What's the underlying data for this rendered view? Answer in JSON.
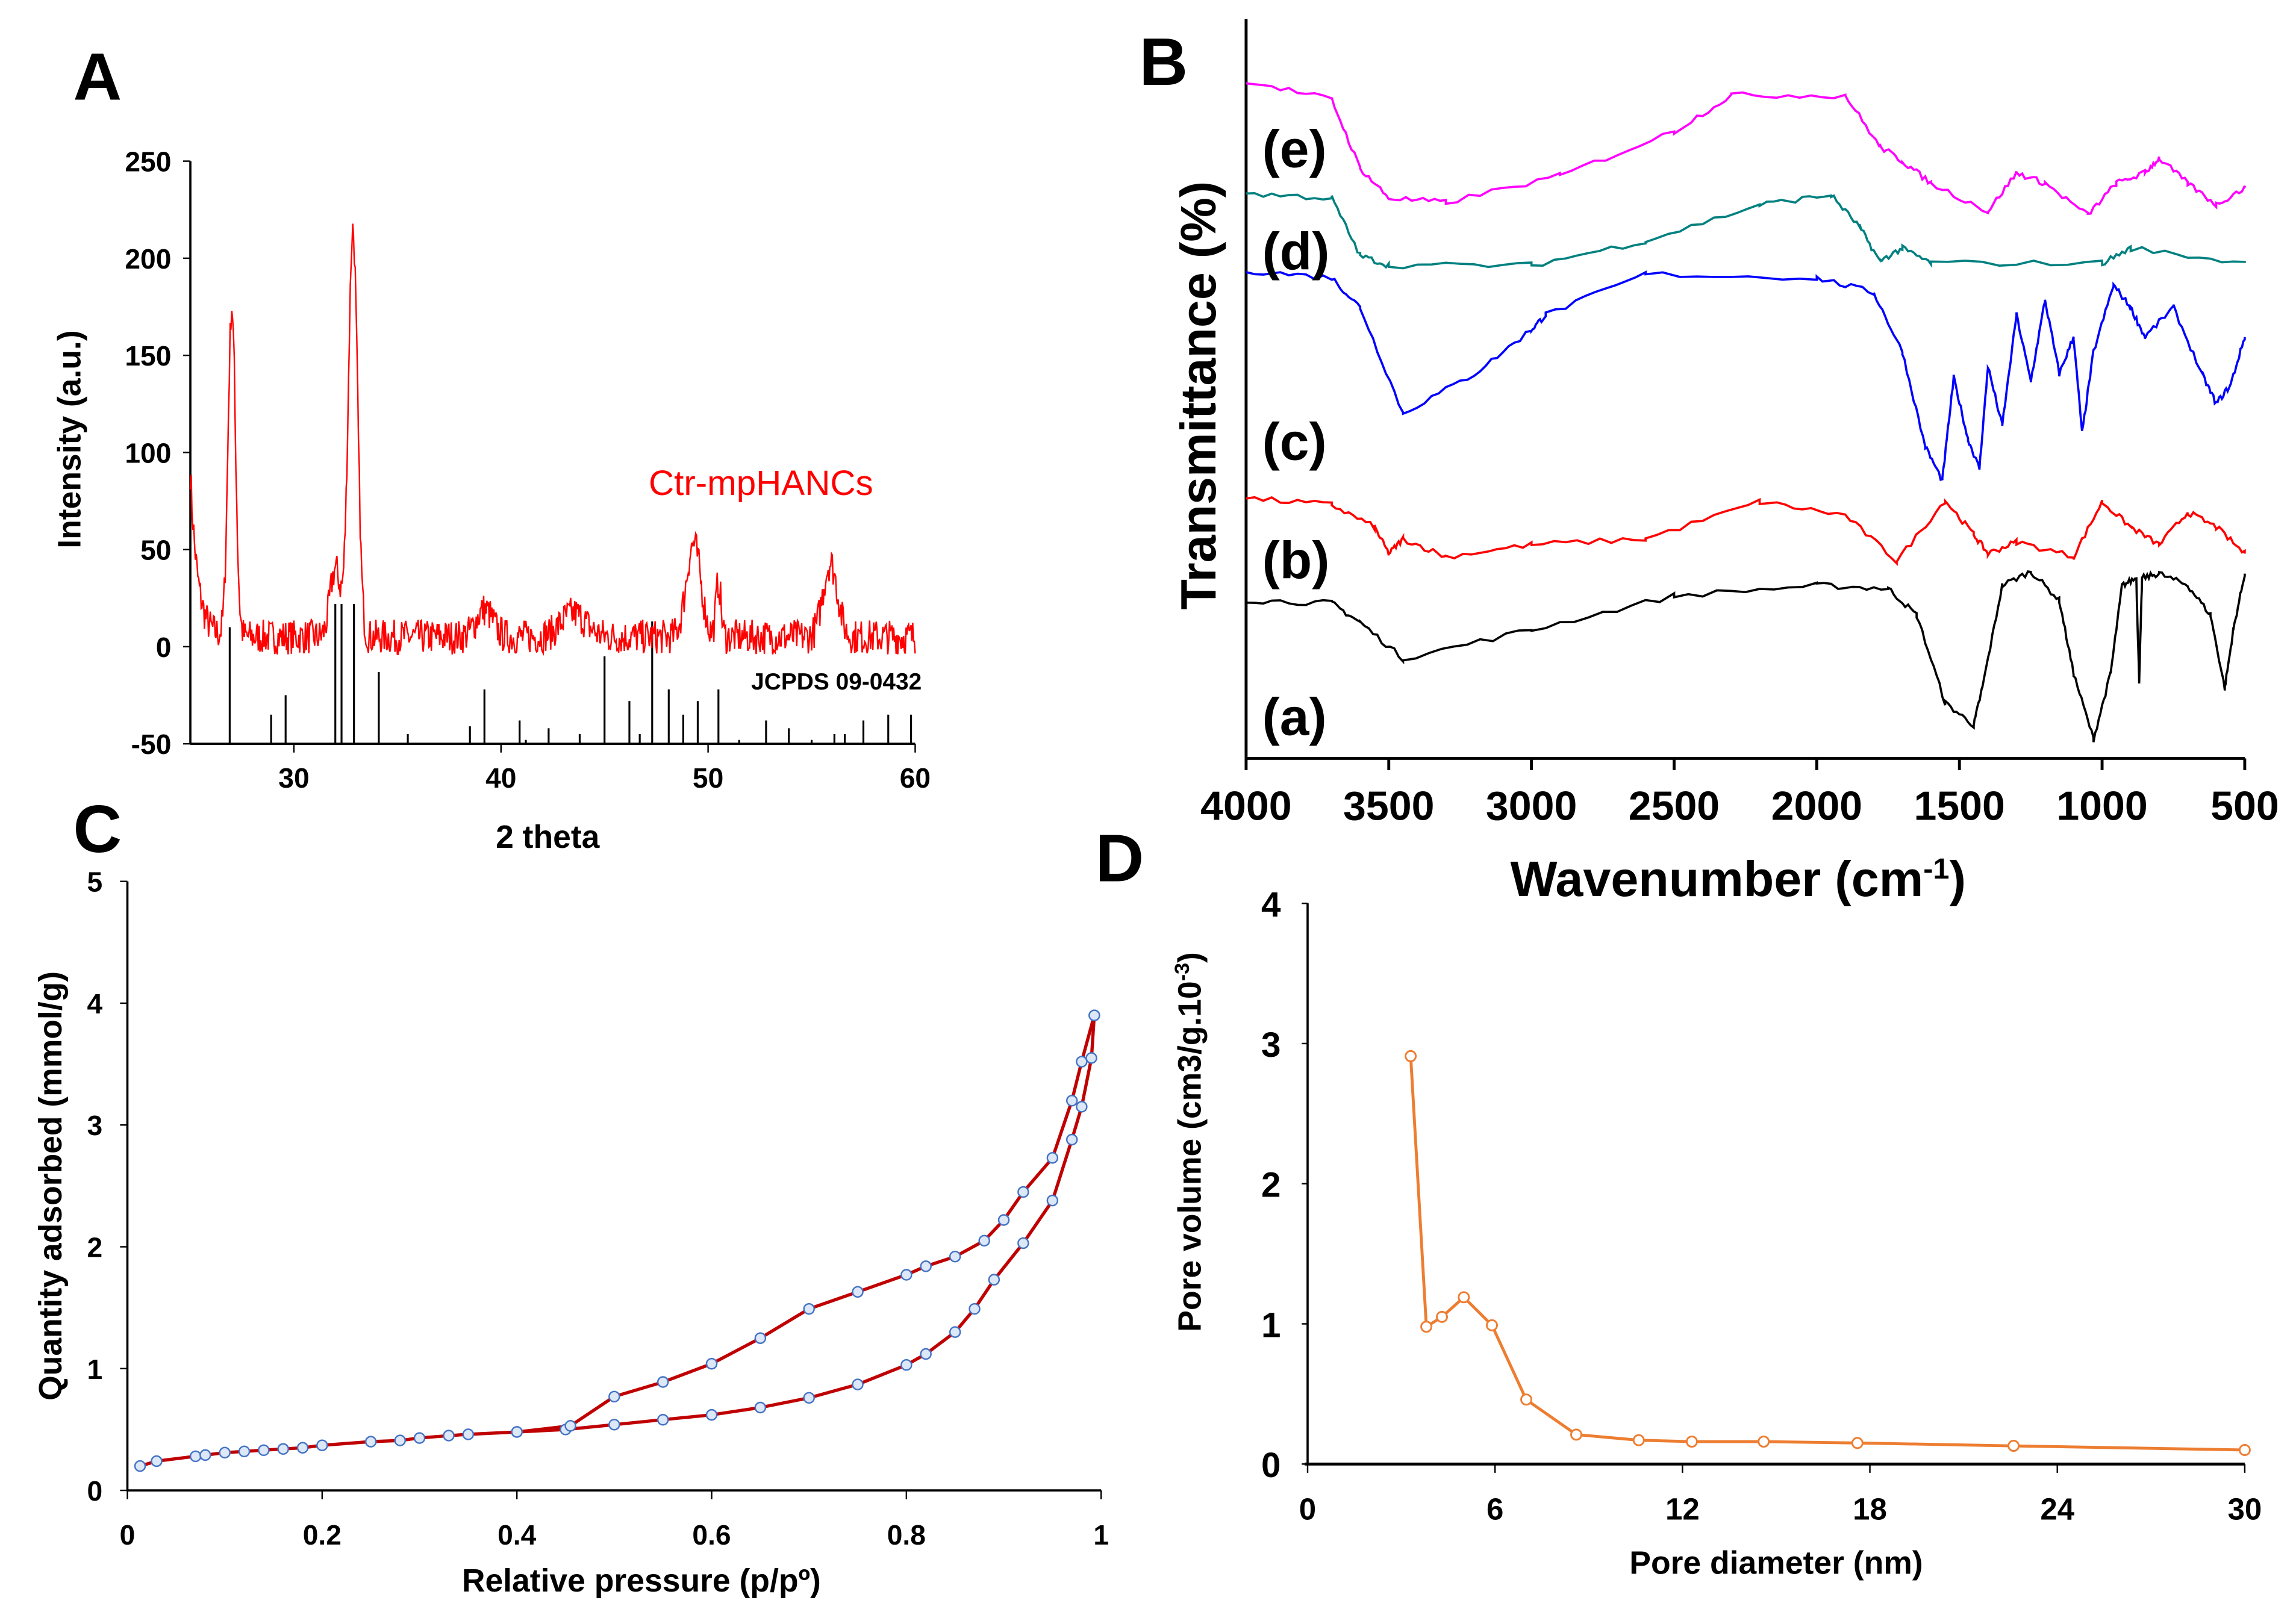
{
  "panels": {
    "A": "A",
    "B": "B",
    "C": "C",
    "D": "D"
  },
  "chart_data": [
    {
      "id": "A",
      "type": "line",
      "xlabel": "2 theta",
      "ylabel": "Intensity (a.u.)",
      "xlim": [
        25,
        60
      ],
      "ylim": [
        -50,
        250
      ],
      "xticks": [
        30,
        40,
        50,
        60
      ],
      "yticks": [
        -50,
        0,
        50,
        100,
        150,
        200,
        250
      ],
      "series_label": "Ctr-mpHANCs",
      "series_color": "#ff0000",
      "reference_label": "JCPDS 09-0432",
      "peaks": [
        [
          27.0,
          170,
          0.18
        ],
        [
          32.0,
          35,
          0.25
        ],
        [
          32.85,
          210,
          0.22
        ],
        [
          39.2,
          14,
          0.4
        ],
        [
          43.5,
          12,
          0.6
        ],
        [
          49.3,
          48,
          0.35
        ],
        [
          50.5,
          28,
          0.12
        ],
        [
          55.9,
          38,
          0.35
        ]
      ],
      "baseline": 5,
      "noise": 9,
      "reference_sticks": [
        [
          26.9,
          10
        ],
        [
          28.9,
          -35
        ],
        [
          29.6,
          -25
        ],
        [
          32.0,
          22
        ],
        [
          32.3,
          22
        ],
        [
          32.9,
          22
        ],
        [
          34.1,
          -13
        ],
        [
          35.5,
          -45
        ],
        [
          38.5,
          -41
        ],
        [
          39.2,
          -22
        ],
        [
          40.9,
          -38
        ],
        [
          41.2,
          -48
        ],
        [
          42.3,
          -42
        ],
        [
          43.8,
          -45
        ],
        [
          45.0,
          -5
        ],
        [
          46.2,
          -28
        ],
        [
          46.7,
          -45
        ],
        [
          47.3,
          13
        ],
        [
          48.1,
          -22
        ],
        [
          48.8,
          -35
        ],
        [
          49.5,
          -28
        ],
        [
          50.5,
          -22
        ],
        [
          51.5,
          -48
        ],
        [
          52.8,
          -38
        ],
        [
          53.9,
          -42
        ],
        [
          55.0,
          -48
        ],
        [
          56.1,
          -45
        ],
        [
          56.6,
          -45
        ],
        [
          57.5,
          -38
        ],
        [
          58.7,
          -35
        ],
        [
          59.8,
          -35
        ]
      ]
    },
    {
      "id": "B",
      "type": "line",
      "xlabel": "Wavenumber (cm",
      "xlabel_sup": "-1",
      "xlabel_end": ")",
      "ylabel": "Transmittance (%)",
      "xlim": [
        4000,
        500
      ],
      "ylim": [
        0,
        100
      ],
      "xticks": [
        4000,
        3500,
        3000,
        2500,
        2000,
        1500,
        1000,
        500
      ],
      "series": [
        {
          "name": "(a)",
          "color": "#000000",
          "points": [
            [
              4000,
              21.4
            ],
            [
              3700,
              21
            ],
            [
              3600,
              18.4
            ],
            [
              3450,
              13.5
            ],
            [
              3000,
              17.4
            ],
            [
              2500,
              22
            ],
            [
              2000,
              23.4
            ],
            [
              1750,
              23
            ],
            [
              1650,
              19.4
            ],
            [
              1550,
              7.5
            ],
            [
              1450,
              4.5
            ],
            [
              1420,
              9.5
            ],
            [
              1350,
              23.4
            ],
            [
              1250,
              25.3
            ],
            [
              1150,
              21.4
            ],
            [
              1100,
              11.5
            ],
            [
              1030,
              2.6
            ],
            [
              970,
              11.5
            ],
            [
              930,
              23.4
            ],
            [
              880,
              24.4
            ],
            [
              870,
              10.5
            ],
            [
              860,
              24.4
            ],
            [
              800,
              25
            ],
            [
              700,
              23.4
            ],
            [
              620,
              19.4
            ],
            [
              570,
              9.5
            ],
            [
              540,
              17.4
            ],
            [
              500,
              25
            ]
          ]
        },
        {
          "name": "(b)",
          "color": "#ff0000",
          "points": [
            [
              4000,
              35.2
            ],
            [
              3700,
              34.3
            ],
            [
              3550,
              31.3
            ],
            [
              3500,
              27.7
            ],
            [
              3450,
              29.7
            ],
            [
              3300,
              27.3
            ],
            [
              3000,
              28.9
            ],
            [
              2600,
              29.7
            ],
            [
              2200,
              34.7
            ],
            [
              1900,
              32.9
            ],
            [
              1720,
              26.7
            ],
            [
              1550,
              34.9
            ],
            [
              1450,
              30.3
            ],
            [
              1400,
              27.7
            ],
            [
              1300,
              29.3
            ],
            [
              1100,
              27.3
            ],
            [
              1000,
              34.7
            ],
            [
              900,
              31.3
            ],
            [
              800,
              28.9
            ],
            [
              700,
              33.3
            ],
            [
              600,
              31.3
            ],
            [
              500,
              27.7
            ]
          ]
        },
        {
          "name": "(c)",
          "color": "#0000ff",
          "points": [
            [
              4000,
              66
            ],
            [
              3700,
              65
            ],
            [
              3600,
              61
            ],
            [
              3450,
              46.7
            ],
            [
              3200,
              52
            ],
            [
              3000,
              58
            ],
            [
              2950,
              60
            ],
            [
              2600,
              65.5
            ],
            [
              2000,
              65
            ],
            [
              1800,
              63
            ],
            [
              1700,
              55
            ],
            [
              1620,
              42.2
            ],
            [
              1560,
              37.6
            ],
            [
              1520,
              51.5
            ],
            [
              1470,
              43.2
            ],
            [
              1430,
              39.2
            ],
            [
              1400,
              53
            ],
            [
              1350,
              45
            ],
            [
              1300,
              60
            ],
            [
              1250,
              51
            ],
            [
              1200,
              62
            ],
            [
              1150,
              52
            ],
            [
              1100,
              57
            ],
            [
              1070,
              44
            ],
            [
              1030,
              55
            ],
            [
              960,
              64
            ],
            [
              900,
              61
            ],
            [
              850,
              57
            ],
            [
              750,
              61
            ],
            [
              650,
              52
            ],
            [
              600,
              48
            ],
            [
              550,
              50.5
            ],
            [
              500,
              57
            ]
          ]
        },
        {
          "name": "(d)",
          "color": "#008080",
          "points": [
            [
              4000,
              76.4
            ],
            [
              3700,
              75.8
            ],
            [
              3600,
              68
            ],
            [
              3500,
              66.7
            ],
            [
              3000,
              66.7
            ],
            [
              2600,
              70
            ],
            [
              2200,
              74.9
            ],
            [
              1950,
              76.2
            ],
            [
              1850,
              71.9
            ],
            [
              1780,
              67.3
            ],
            [
              1700,
              69
            ],
            [
              1600,
              67
            ],
            [
              1000,
              67
            ],
            [
              900,
              69
            ],
            [
              500,
              67
            ]
          ]
        },
        {
          "name": "(e)",
          "color": "#ff00ff",
          "points": [
            [
              4000,
              91.7
            ],
            [
              3700,
              89.1
            ],
            [
              3600,
              79.8
            ],
            [
              3500,
              75.8
            ],
            [
              3300,
              75.2
            ],
            [
              2900,
              78.8
            ],
            [
              2500,
              84.8
            ],
            [
              2300,
              89.7
            ],
            [
              1900,
              89.7
            ],
            [
              1780,
              82.8
            ],
            [
              1700,
              80.8
            ],
            [
              1600,
              77.8
            ],
            [
              1400,
              74
            ],
            [
              1300,
              79.2
            ],
            [
              1200,
              77.8
            ],
            [
              1050,
              73.5
            ],
            [
              950,
              77.8
            ],
            [
              850,
              79.2
            ],
            [
              800,
              81.2
            ],
            [
              700,
              77.8
            ],
            [
              600,
              74.9
            ],
            [
              500,
              77.2
            ]
          ]
        }
      ]
    },
    {
      "id": "C",
      "type": "line",
      "xlabel": "Relative pressure (p/pº)",
      "ylabel": "Quantity adsorbed (mmol/g)",
      "xlim": [
        0,
        1
      ],
      "ylim": [
        0,
        5
      ],
      "xticks": [
        0,
        0.2,
        0.4,
        0.6,
        0.8,
        1
      ],
      "xtick_labels": [
        "0",
        "0.2",
        "0.4",
        "0.6",
        "0.8",
        "1"
      ],
      "yticks": [
        0,
        1,
        2,
        3,
        4,
        5
      ],
      "line_color": "#c00000",
      "marker_color": "#4472c4",
      "series": [
        {
          "name": "adsorption",
          "points": [
            [
              0.013,
              0.2
            ],
            [
              0.03,
              0.24
            ],
            [
              0.07,
              0.28
            ],
            [
              0.08,
              0.29
            ],
            [
              0.1,
              0.31
            ],
            [
              0.12,
              0.32
            ],
            [
              0.14,
              0.33
            ],
            [
              0.16,
              0.34
            ],
            [
              0.18,
              0.35
            ],
            [
              0.2,
              0.37
            ],
            [
              0.25,
              0.4
            ],
            [
              0.28,
              0.41
            ],
            [
              0.3,
              0.43
            ],
            [
              0.33,
              0.45
            ],
            [
              0.35,
              0.46
            ],
            [
              0.4,
              0.48
            ],
            [
              0.45,
              0.5
            ],
            [
              0.5,
              0.54
            ],
            [
              0.55,
              0.58
            ],
            [
              0.6,
              0.62
            ],
            [
              0.65,
              0.68
            ],
            [
              0.7,
              0.76
            ],
            [
              0.75,
              0.87
            ],
            [
              0.8,
              1.03
            ],
            [
              0.82,
              1.12
            ],
            [
              0.85,
              1.3
            ],
            [
              0.87,
              1.49
            ],
            [
              0.89,
              1.73
            ],
            [
              0.92,
              2.03
            ],
            [
              0.95,
              2.38
            ],
            [
              0.97,
              2.88
            ],
            [
              0.98,
              3.15
            ],
            [
              0.99,
              3.55
            ],
            [
              0.993,
              3.9
            ]
          ]
        },
        {
          "name": "desorption",
          "points": [
            [
              0.993,
              3.9
            ],
            [
              0.98,
              3.52
            ],
            [
              0.97,
              3.2
            ],
            [
              0.95,
              2.73
            ],
            [
              0.92,
              2.45
            ],
            [
              0.9,
              2.22
            ],
            [
              0.88,
              2.05
            ],
            [
              0.85,
              1.92
            ],
            [
              0.82,
              1.84
            ],
            [
              0.8,
              1.77
            ],
            [
              0.75,
              1.63
            ],
            [
              0.7,
              1.49
            ],
            [
              0.65,
              1.25
            ],
            [
              0.6,
              1.04
            ],
            [
              0.55,
              0.89
            ],
            [
              0.5,
              0.77
            ],
            [
              0.455,
              0.53
            ],
            [
              0.4,
              0.48
            ]
          ]
        }
      ]
    },
    {
      "id": "D",
      "type": "line",
      "xlabel": "Pore diameter (nm)",
      "ylabel": "Pore volume (cm3/g.10",
      "ylabel_sup": "-3",
      "ylabel_end": ")",
      "xlim": [
        0,
        30
      ],
      "ylim": [
        0,
        4
      ],
      "xticks": [
        0,
        6,
        12,
        18,
        24,
        30
      ],
      "yticks": [
        0,
        1,
        2,
        3,
        4
      ],
      "color": "#ed7d31",
      "points": [
        [
          3.3,
          2.91
        ],
        [
          3.8,
          0.98
        ],
        [
          4.3,
          1.05
        ],
        [
          5.0,
          1.19
        ],
        [
          5.9,
          0.99
        ],
        [
          7.0,
          0.46
        ],
        [
          8.6,
          0.21
        ],
        [
          10.6,
          0.17
        ],
        [
          12.3,
          0.16
        ],
        [
          14.6,
          0.16
        ],
        [
          17.6,
          0.15
        ],
        [
          22.6,
          0.13
        ],
        [
          30,
          0.1
        ]
      ]
    }
  ]
}
